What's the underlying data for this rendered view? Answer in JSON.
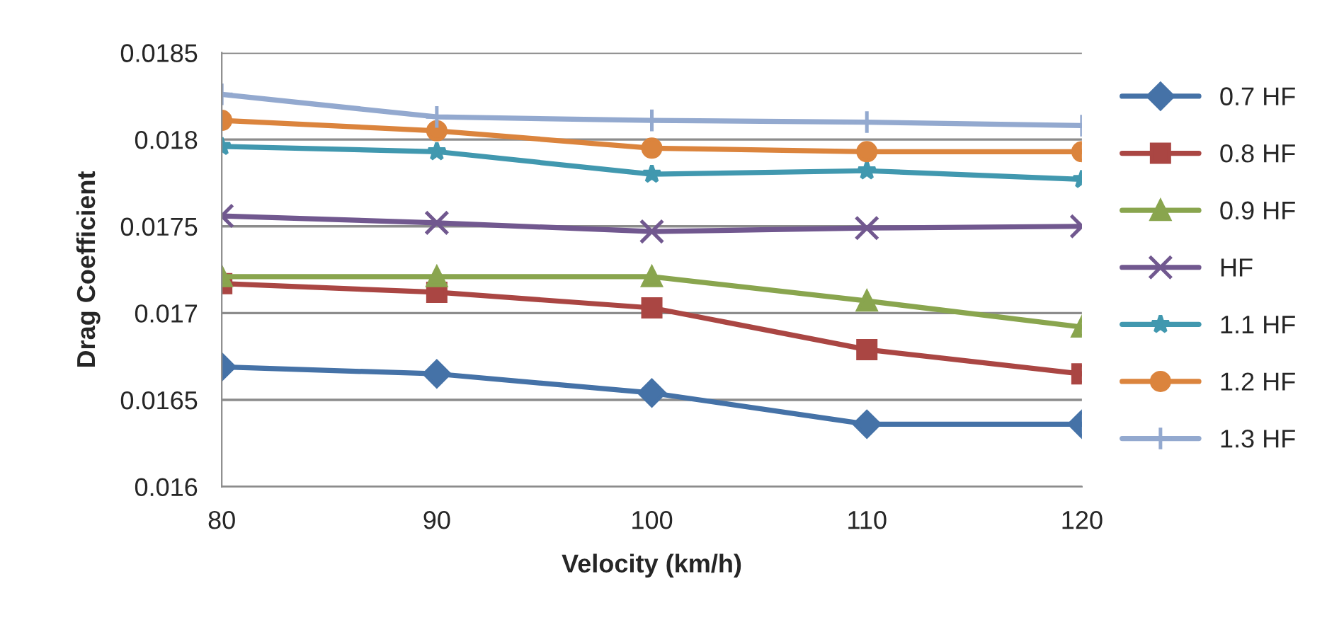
{
  "chart_data": {
    "type": "line",
    "xlabel": "Velocity (km/h)",
    "ylabel": "Drag Coefficient",
    "x": [
      80,
      90,
      100,
      110,
      120
    ],
    "series": [
      {
        "name": "0.7 HF",
        "color": "#4572a7",
        "marker": "diamond",
        "values": [
          0.01669,
          0.01665,
          0.01654,
          0.01636,
          0.01636
        ]
      },
      {
        "name": "0.8 HF",
        "color": "#aa4643",
        "marker": "square",
        "values": [
          0.01717,
          0.01712,
          0.01703,
          0.01679,
          0.01665
        ]
      },
      {
        "name": "0.9 HF",
        "color": "#89a54e",
        "marker": "triangle",
        "values": [
          0.01721,
          0.01721,
          0.01721,
          0.01707,
          0.01692
        ]
      },
      {
        "name": "HF",
        "color": "#71588f",
        "marker": "cross",
        "values": [
          0.01756,
          0.01752,
          0.01747,
          0.01749,
          0.0175
        ]
      },
      {
        "name": "1.1 HF",
        "color": "#4198af",
        "marker": "star",
        "values": [
          0.01796,
          0.01793,
          0.0178,
          0.01782,
          0.01777
        ]
      },
      {
        "name": "1.2 HF",
        "color": "#db843d",
        "marker": "circle",
        "values": [
          0.01811,
          0.01805,
          0.01795,
          0.01793,
          0.01793
        ]
      },
      {
        "name": "1.3 HF",
        "color": "#93a9cf",
        "marker": "plus",
        "values": [
          0.01826,
          0.01813,
          0.01811,
          0.0181,
          0.01808
        ]
      }
    ],
    "xlim": [
      80,
      120
    ],
    "xticks": [
      80,
      90,
      100,
      110,
      120
    ],
    "ylim": [
      0.016,
      0.0185
    ],
    "yticks": [
      0.016,
      0.0165,
      0.017,
      0.0175,
      0.018,
      0.0185
    ],
    "grid": "y",
    "legend": "right",
    "line_style": "solid"
  }
}
